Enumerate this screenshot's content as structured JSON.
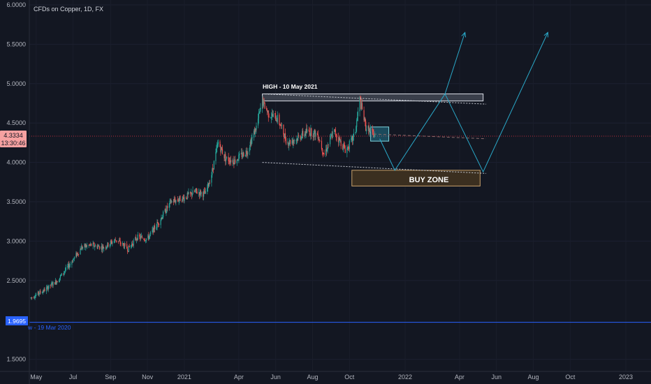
{
  "header": {
    "symbol_title": "CFDs on Copper, 1D, FX"
  },
  "price_labels": {
    "current_price": "4.3334",
    "countdown": "13:30:46",
    "low_price": "1.9695",
    "low_note": "w - 19 Mar 2020"
  },
  "annotations": {
    "high_note": "HIGH - 10 May 2021",
    "buy_zone": "BUY ZONE"
  },
  "colors": {
    "background": "#131722",
    "up_candle": "#26a69a",
    "down_candle": "#ef5350",
    "current_price_line": "#f23645",
    "current_price_tag": "#f7a1a1",
    "low_line": "#2962ff",
    "projection": "#2aa9c9",
    "buy_zone_fill": "#3b2f20",
    "buy_zone_border": "#c8a06a",
    "high_box": "#d9dde6",
    "axis_text": "#b2b5be"
  },
  "chart_data": {
    "type": "candlestick",
    "title": "CFDs on Copper, 1D, FX",
    "ylim": [
      1.36,
      6.06
    ],
    "yticks": [
      "6.0000",
      "5.5000",
      "5.0000",
      "4.5000",
      "4.0000",
      "3.5000",
      "3.0000",
      "2.5000",
      "1.5000"
    ],
    "xticks": [
      "May",
      "Jul",
      "Sep",
      "Nov",
      "2021",
      "Apr",
      "Jun",
      "Aug",
      "Oct",
      "2022",
      "Apr",
      "Jun",
      "Aug",
      "Oct",
      "2023"
    ],
    "price_path": [
      [
        "2020-04-22",
        2.28
      ],
      [
        "2020-05-15",
        2.38
      ],
      [
        "2020-06-05",
        2.5
      ],
      [
        "2020-06-25",
        2.7
      ],
      [
        "2020-07-15",
        2.92
      ],
      [
        "2020-07-30",
        2.95
      ],
      [
        "2020-08-20",
        2.92
      ],
      [
        "2020-09-10",
        3.02
      ],
      [
        "2020-09-30",
        2.9
      ],
      [
        "2020-10-15",
        3.05
      ],
      [
        "2020-11-01",
        3.03
      ],
      [
        "2020-11-20",
        3.25
      ],
      [
        "2020-12-10",
        3.5
      ],
      [
        "2020-12-31",
        3.55
      ],
      [
        "2021-01-20",
        3.63
      ],
      [
        "2021-02-05",
        3.6
      ],
      [
        "2021-02-15",
        3.85
      ],
      [
        "2021-02-26",
        4.25
      ],
      [
        "2021-03-10",
        4.05
      ],
      [
        "2021-03-25",
        4.02
      ],
      [
        "2021-04-15",
        4.15
      ],
      [
        "2021-04-30",
        4.45
      ],
      [
        "2021-05-10",
        4.78
      ],
      [
        "2021-05-20",
        4.62
      ],
      [
        "2021-06-05",
        4.55
      ],
      [
        "2021-06-20",
        4.25
      ],
      [
        "2021-07-05",
        4.3
      ],
      [
        "2021-07-25",
        4.4
      ],
      [
        "2021-08-10",
        4.35
      ],
      [
        "2021-08-20",
        4.1
      ],
      [
        "2021-09-05",
        4.4
      ],
      [
        "2021-09-25",
        4.15
      ],
      [
        "2021-10-10",
        4.35
      ],
      [
        "2021-10-18",
        4.8
      ],
      [
        "2021-10-28",
        4.45
      ],
      [
        "2021-11-10",
        4.35
      ],
      [
        "2021-11-12",
        4.33
      ]
    ],
    "high_marker": {
      "label": "HIGH - 10 May 2021",
      "price_range": [
        4.78,
        4.87
      ],
      "dates": [
        "2021-05-10",
        "2022-05-10"
      ]
    },
    "buy_zone": {
      "label": "BUY ZONE",
      "price_range": [
        3.7,
        3.9
      ],
      "dates": [
        "2021-10-05",
        "2022-05-05"
      ]
    },
    "consolidation_box": {
      "price_range": [
        4.27,
        4.45
      ],
      "dates": [
        "2021-11-05",
        "2021-12-05"
      ]
    },
    "upper_trendline": [
      [
        "2021-05-10",
        4.87
      ],
      [
        "2022-05-15",
        4.74
      ]
    ],
    "lower_trendline": [
      [
        "2021-05-10",
        4.0
      ],
      [
        "2022-05-15",
        3.86
      ]
    ],
    "mid_dashed_line": [
      [
        "2021-11-10",
        4.36
      ],
      [
        "2022-05-15",
        4.3
      ]
    ],
    "projection_path": [
      [
        "2021-11-20",
        4.3
      ],
      [
        "2021-12-15",
        3.9
      ],
      [
        "2022-03-08",
        4.87
      ],
      [
        "2022-05-10",
        3.88
      ],
      [
        "2022-08-25",
        5.65
      ]
    ],
    "projection_arrow_2": [
      [
        "2022-03-08",
        4.87
      ],
      [
        "2022-04-10",
        5.65
      ]
    ],
    "current_price": 4.3334,
    "low_level": {
      "price": 1.9695,
      "label": "w - 19 Mar 2020"
    }
  }
}
